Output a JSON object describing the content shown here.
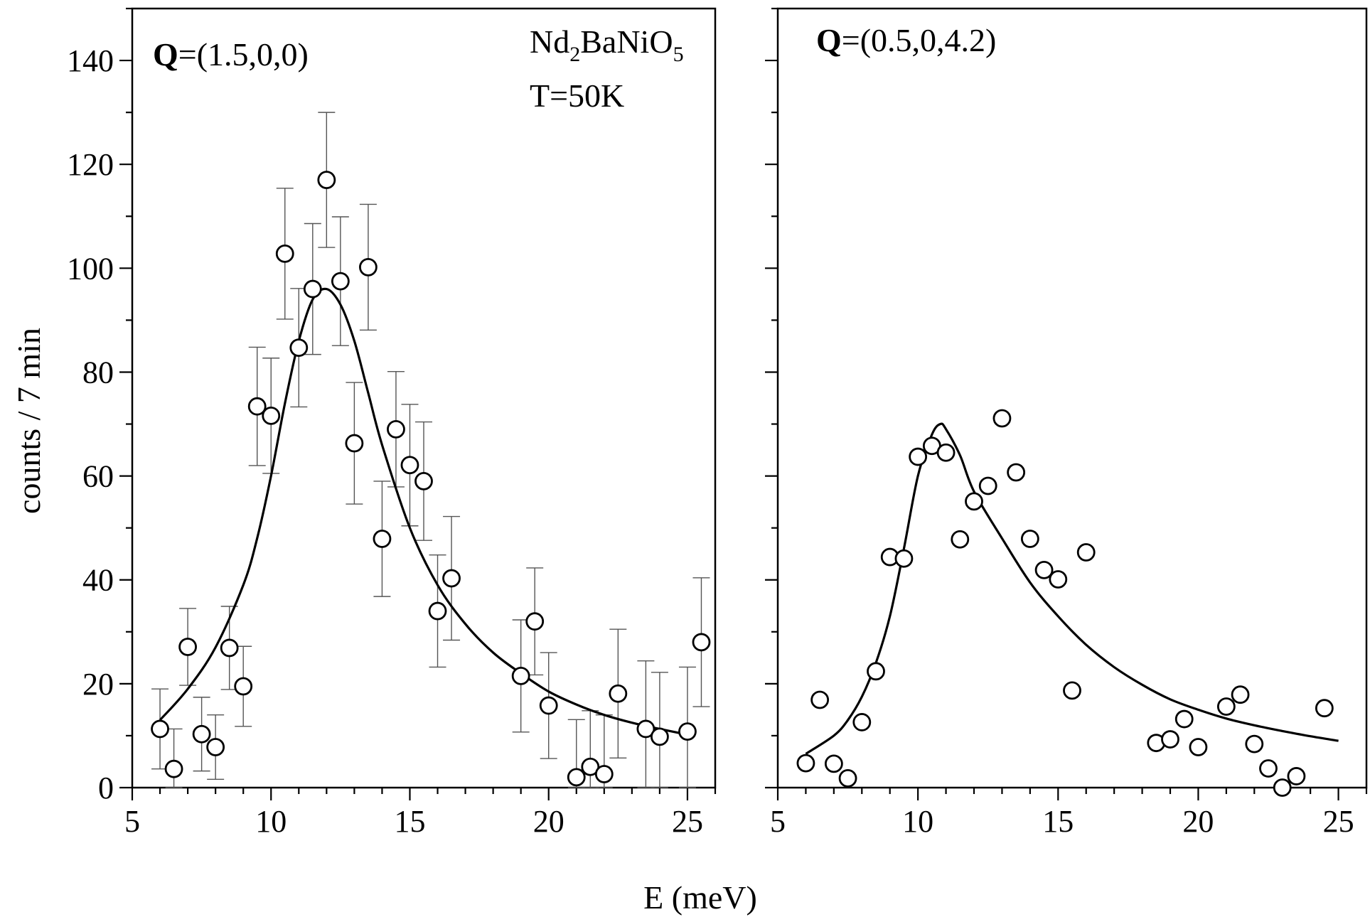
{
  "figure": {
    "xlabel": "E (meV)",
    "ylabel": "counts / 7 min"
  },
  "chart_data": [
    {
      "type": "scatter",
      "title": "",
      "annotations": [
        {
          "bold": "Q",
          "text": "=(1.5,0,0)"
        },
        {
          "main": "Nd",
          "sub1": "2",
          "mid": "BaNiO",
          "sub2": "5"
        },
        {
          "text": "T=50K"
        }
      ],
      "xlim": [
        5,
        26
      ],
      "ylim": [
        0,
        150
      ],
      "xticks": [
        5,
        10,
        15,
        20,
        25
      ],
      "yticks": [
        0,
        20,
        40,
        60,
        80,
        100,
        120,
        140
      ],
      "grid": false,
      "series": [
        {
          "marker": "open-circle",
          "x": [
            6,
            6.5,
            7,
            7.5,
            8,
            8.5,
            9,
            9.5,
            10,
            10.5,
            11,
            11.5,
            12,
            12.5,
            13,
            13.5,
            14,
            14.5,
            15,
            15.5,
            16,
            16.5,
            19,
            19.5,
            20,
            21,
            21.5,
            22,
            22.5,
            23.5,
            24,
            25,
            25.5
          ],
          "y": [
            11.3,
            3.6,
            27.1,
            10.3,
            7.8,
            26.9,
            19.5,
            73.4,
            71.6,
            102.8,
            84.7,
            96,
            117,
            97.5,
            66.3,
            100.2,
            47.9,
            69,
            62.1,
            59,
            34,
            40.3,
            21.5,
            32,
            15.8,
            2,
            4,
            2.6,
            18.1,
            11.3,
            9.8,
            10.8,
            28
          ],
          "yerr": [
            7.7,
            7.7,
            7.4,
            7.1,
            6.2,
            8,
            7.7,
            11.4,
            11.1,
            12.6,
            11.4,
            12.6,
            13,
            12.4,
            11.7,
            12.1,
            11.1,
            11.1,
            11.7,
            11.4,
            10.8,
            11.9,
            10.8,
            10.3,
            10.2,
            11.1,
            10.8,
            11.4,
            12.4,
            13.1,
            12.4,
            12.4,
            12.4
          ]
        },
        {
          "type": "line",
          "style": "fit-curve",
          "x": [
            6,
            7,
            8,
            9,
            9.5,
            10,
            10.5,
            11,
            11.5,
            12,
            12.5,
            13,
            13.5,
            14,
            15,
            16,
            17,
            18,
            19,
            20,
            21,
            22,
            23,
            24,
            25
          ],
          "y": [
            13,
            19,
            27,
            39,
            48,
            60,
            74,
            86,
            94,
            96,
            93,
            86,
            76,
            66,
            50,
            39,
            31.5,
            26,
            22,
            18.5,
            16,
            14,
            12.5,
            11.3,
            10.2
          ]
        }
      ]
    },
    {
      "type": "scatter",
      "title": "",
      "annotations": [
        {
          "bold": "Q",
          "text": "=(0.5,0,4.2)"
        }
      ],
      "xlim": [
        5,
        26
      ],
      "ylim": [
        0,
        150
      ],
      "xticks": [
        5,
        10,
        15,
        20,
        25
      ],
      "yticks": [
        0,
        20,
        40,
        60,
        80,
        100,
        120,
        140
      ],
      "grid": false,
      "series": [
        {
          "marker": "open-circle",
          "x": [
            6,
            6.5,
            7,
            7.5,
            8,
            8.5,
            9,
            9.5,
            10,
            10.5,
            11,
            11.5,
            12,
            12.5,
            13,
            13.5,
            14,
            14.5,
            15,
            15.5,
            16,
            18.5,
            19,
            19.5,
            20,
            21,
            21.5,
            22,
            22.5,
            23,
            23.5,
            24.5
          ],
          "y": [
            4.7,
            16.9,
            4.6,
            1.8,
            12.6,
            22.4,
            44.4,
            44.1,
            63.7,
            65.8,
            64.5,
            47.8,
            55.1,
            58.1,
            71.1,
            60.7,
            47.9,
            41.9,
            40.1,
            18.7,
            45.3,
            8.6,
            9.3,
            13.2,
            7.8,
            15.6,
            17.9,
            8.4,
            3.7,
            0,
            2.2,
            15.3
          ]
        },
        {
          "type": "line",
          "style": "fit-curve",
          "x": [
            6,
            7,
            7.5,
            8,
            8.5,
            9,
            9.5,
            10,
            10.5,
            10.8,
            11,
            11.5,
            12,
            13,
            14,
            15,
            16,
            17,
            18,
            19,
            20,
            21,
            22,
            23,
            24,
            25
          ],
          "y": [
            6.5,
            10,
            13,
            17.5,
            24,
            33,
            46,
            60,
            68,
            70,
            69,
            64,
            57,
            48,
            39.5,
            33,
            27.5,
            23.2,
            19.8,
            17,
            15,
            13.3,
            12,
            10.9,
            9.9,
            9
          ]
        }
      ]
    }
  ]
}
